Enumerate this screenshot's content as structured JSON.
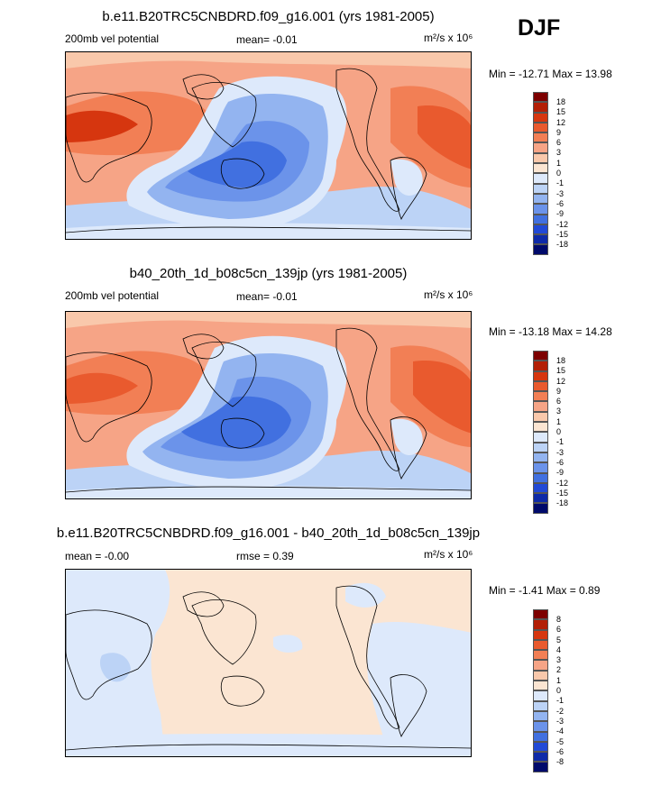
{
  "season": "DJF",
  "colors": {
    "land_outline": "#000000",
    "deep_red": "#8b0000",
    "deep_blue": "#000080"
  },
  "panels": [
    {
      "title": "b.e11.B20TRC5CNBDRD.f09_g16.001 (yrs 1981-2005)",
      "left_label": "200mb vel potential",
      "center_label": "mean=  -0.01",
      "units": "m²/s x 10⁶",
      "minmax": "Min = -12.71 Max =  13.98",
      "colorbar": {
        "labels": [
          "18",
          "15",
          "12",
          "9",
          "6",
          "3",
          "1",
          "0",
          "-1",
          "-3",
          "-6",
          "-9",
          "-12",
          "-15",
          "-18"
        ],
        "colors": [
          "#7d0000",
          "#b31f06",
          "#d6360f",
          "#e95a2e",
          "#f27f55",
          "#f6a486",
          "#f9c8ab",
          "#fbe5d2",
          "#dde9fb",
          "#bcd3f6",
          "#93b4f0",
          "#6b93ea",
          "#4170e0",
          "#2149d6",
          "#0e2aa8",
          "#000a6b"
        ]
      }
    },
    {
      "title": "b40_20th_1d_b08c5cn_139jp (yrs 1981-2005)",
      "left_label": "200mb vel potential",
      "center_label": "mean=  -0.01",
      "units": "m²/s x 10⁶",
      "minmax": "Min = -13.18 Max =  14.28",
      "colorbar": {
        "labels": [
          "18",
          "15",
          "12",
          "9",
          "6",
          "3",
          "1",
          "0",
          "-1",
          "-3",
          "-6",
          "-9",
          "-12",
          "-15",
          "-18"
        ],
        "colors": [
          "#7d0000",
          "#b31f06",
          "#d6360f",
          "#e95a2e",
          "#f27f55",
          "#f6a486",
          "#f9c8ab",
          "#fbe5d2",
          "#dde9fb",
          "#bcd3f6",
          "#93b4f0",
          "#6b93ea",
          "#4170e0",
          "#2149d6",
          "#0e2aa8",
          "#000a6b"
        ]
      }
    },
    {
      "title": "b.e11.B20TRC5CNBDRD.f09_g16.001 - b40_20th_1d_b08c5cn_139jp",
      "left_label": "mean =  -0.00",
      "center_label": "rmse =   0.39",
      "units": "m²/s x 10⁶",
      "minmax": "Min =  -1.41 Max =   0.89",
      "colorbar": {
        "labels": [
          "8",
          "6",
          "5",
          "4",
          "3",
          "2",
          "1",
          "0",
          "-1",
          "-2",
          "-3",
          "-4",
          "-5",
          "-6",
          "-8"
        ],
        "colors": [
          "#7d0000",
          "#b31f06",
          "#d6360f",
          "#e95a2e",
          "#f27f55",
          "#f6a486",
          "#f9c8ab",
          "#fbe5d2",
          "#dde9fb",
          "#bcd3f6",
          "#93b4f0",
          "#6b93ea",
          "#4170e0",
          "#2149d6",
          "#0e2aa8",
          "#000a6b"
        ]
      }
    }
  ]
}
